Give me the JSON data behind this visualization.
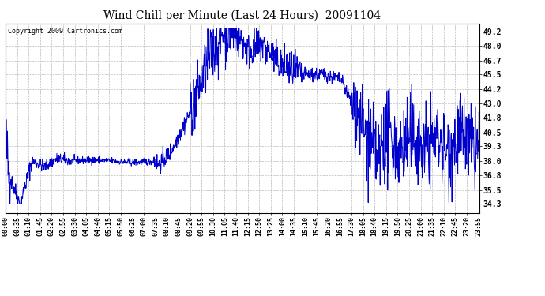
{
  "title": "Wind Chill per Minute (Last 24 Hours)  20091104",
  "copyright": "Copyright 2009 Cartronics.com",
  "line_color": "#0000cc",
  "background_color": "#ffffff",
  "grid_color": "#bbbbbb",
  "yticks": [
    34.3,
    35.5,
    36.8,
    38.0,
    39.3,
    40.5,
    41.8,
    43.0,
    44.2,
    45.5,
    46.7,
    48.0,
    49.2
  ],
  "ylim": [
    33.5,
    49.9
  ],
  "xtick_labels": [
    "00:00",
    "00:35",
    "01:10",
    "01:45",
    "02:20",
    "02:55",
    "03:30",
    "04:05",
    "04:40",
    "05:15",
    "05:50",
    "06:25",
    "07:00",
    "07:35",
    "08:10",
    "08:45",
    "09:20",
    "09:55",
    "10:30",
    "11:05",
    "11:40",
    "12:15",
    "12:50",
    "13:25",
    "14:00",
    "14:35",
    "15:10",
    "15:45",
    "16:20",
    "16:55",
    "17:30",
    "18:05",
    "18:40",
    "19:15",
    "19:50",
    "20:25",
    "21:00",
    "21:35",
    "22:10",
    "22:45",
    "23:20",
    "23:55"
  ],
  "num_points": 1440,
  "seed": 42
}
